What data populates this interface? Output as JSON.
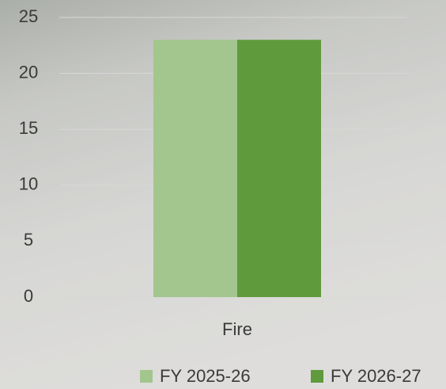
{
  "chart_data": {
    "type": "bar",
    "categories": [
      "Fire"
    ],
    "series": [
      {
        "name": "FY 2025-26",
        "color": "#a3c58e",
        "values": [
          23
        ]
      },
      {
        "name": "FY 2026-27",
        "color": "#5f9a3c",
        "values": [
          23
        ]
      }
    ],
    "ylim": [
      0,
      25
    ],
    "yticks": [
      0,
      5,
      10,
      15,
      20,
      25
    ],
    "grid": true,
    "legend": "bottom"
  }
}
